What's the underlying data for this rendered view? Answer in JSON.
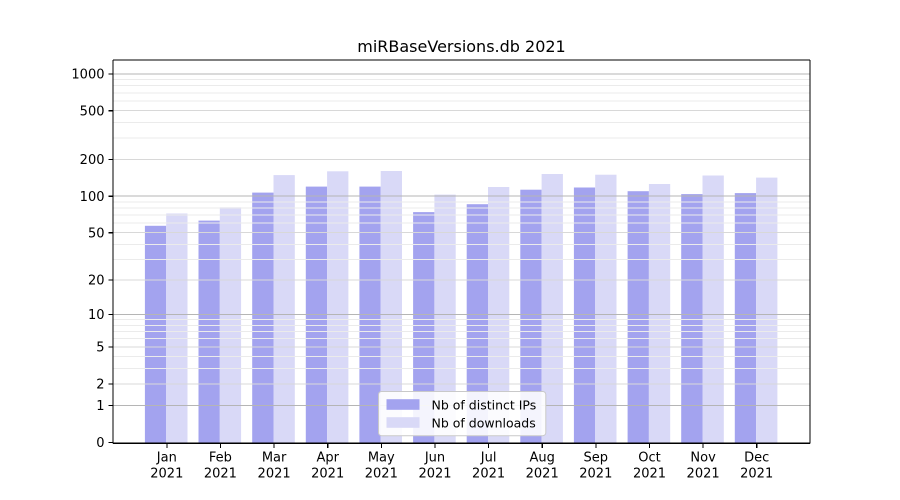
{
  "chart_data": {
    "type": "bar",
    "title": "miRBaseVersions.db 2021",
    "categories": [
      "Jan 2021",
      "Feb 2021",
      "Mar 2021",
      "Apr 2021",
      "May 2021",
      "Jun 2021",
      "Jul 2021",
      "Aug 2021",
      "Sep 2021",
      "Oct 2021",
      "Nov 2021",
      "Dec 2021"
    ],
    "series": [
      {
        "name": "Nb of distinct IPs",
        "color": "#a3a3ef",
        "values": [
          57,
          63,
          107,
          120,
          120,
          74,
          86,
          113,
          118,
          110,
          104,
          106
        ]
      },
      {
        "name": "Nb of downloads",
        "color": "#d9d9f7",
        "values": [
          72,
          81,
          149,
          160,
          161,
          103,
          119,
          152,
          150,
          126,
          148,
          142
        ]
      }
    ],
    "y_ticks": [
      1000,
      500,
      200,
      100,
      50,
      20,
      10,
      5,
      2,
      1,
      0
    ],
    "y_scale": "log10(value+1)",
    "ylim": [
      0,
      1270
    ],
    "xlabel": "",
    "ylabel": "",
    "grid": "on",
    "legend_position": "lower center inside plot"
  },
  "colors": {
    "background": "#ffffff",
    "bar_dark": "#a3a3ef",
    "bar_light": "#d9d9f7",
    "grid_major": "#b5b5b5",
    "grid_minor_labeled": "#d8d8d8",
    "grid_minor": "#ebebeb",
    "axis": "#000000",
    "text": "#000000",
    "legend_border": "#c9c9c9"
  }
}
